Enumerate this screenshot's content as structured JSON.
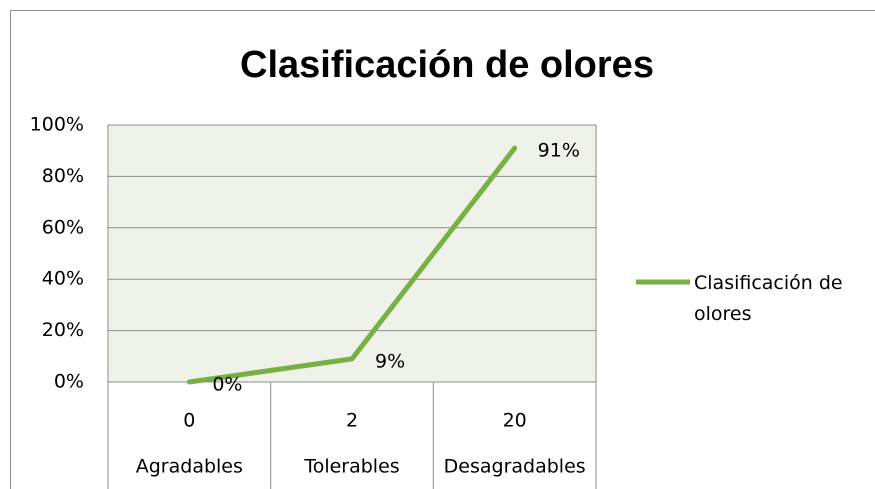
{
  "chart_data": {
    "type": "line",
    "title": "Clasificación de olores",
    "categories": [
      "Agradables",
      "Tolerables",
      "Desagradables"
    ],
    "category_codes": [
      0,
      2,
      20
    ],
    "series": [
      {
        "name": "Clasificación de olores",
        "color": "#77b043",
        "values": [
          0,
          9,
          91
        ],
        "value_labels": [
          "0%",
          "9%",
          "91%"
        ]
      }
    ],
    "ylim": [
      0,
      100
    ],
    "yticks": [
      {
        "value": 0,
        "label": "0%"
      },
      {
        "value": 20,
        "label": "20%"
      },
      {
        "value": 40,
        "label": "40%"
      },
      {
        "value": 60,
        "label": "60%"
      },
      {
        "value": 80,
        "label": "80%"
      },
      {
        "value": 100,
        "label": "100%"
      }
    ],
    "grid": true,
    "legend": "right"
  }
}
